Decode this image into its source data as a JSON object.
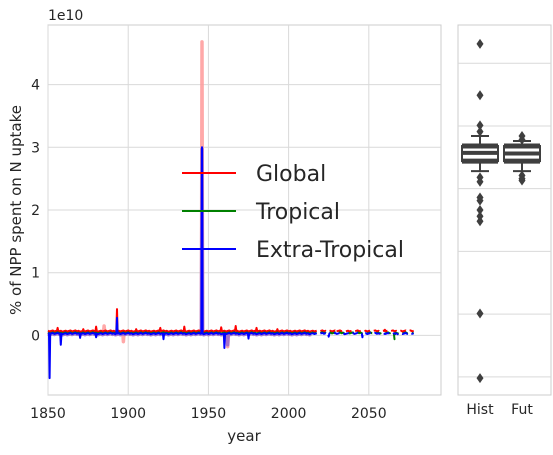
{
  "chart_data": [
    {
      "type": "line",
      "offset_label": "1e10",
      "xlabel": "year",
      "ylabel": "% of NPP spent on N uptake",
      "xlim": [
        1850,
        2095
      ],
      "ylim": [
        -0.95,
        4.95
      ],
      "x_ticks": [
        1850,
        1900,
        1950,
        2000,
        2050
      ],
      "y_ticks": [
        0,
        1,
        2,
        3,
        4
      ],
      "grid": true,
      "legend_position": "center",
      "legend": [
        {
          "label": "Global",
          "color": "#ff0000"
        },
        {
          "label": "Tropical",
          "color": "#008000"
        },
        {
          "label": "Extra-Tropical",
          "color": "#0000ff"
        }
      ],
      "series": [
        {
          "name": "Global",
          "color": "#ff0000",
          "style": "solid",
          "x_start": 1850,
          "x_end": 2014,
          "base": 0.07,
          "spikes": [
            [
              1856,
              0.12
            ],
            [
              1872,
              0.1
            ],
            [
              1880,
              0.14
            ],
            [
              1893,
              0.42
            ],
            [
              1905,
              0.1
            ],
            [
              1920,
              0.12
            ],
            [
              1935,
              0.14
            ],
            [
              1946,
              0.22
            ],
            [
              1958,
              0.13
            ],
            [
              1967,
              0.15
            ],
            [
              1980,
              0.12
            ],
            [
              1993,
              0.1
            ]
          ]
        },
        {
          "name": "Global (future)",
          "color": "#ff0000",
          "style": "dashed",
          "x_start": 2014,
          "x_end": 2078,
          "base": 0.07,
          "spikes": [
            [
              2030,
              0.1
            ],
            [
              2060,
              0.09
            ]
          ]
        },
        {
          "name": "Tropical",
          "color": "#008000",
          "style": "solid",
          "x_start": 1850,
          "x_end": 2014,
          "base": 0.04,
          "spikes": [
            [
              1893,
              0.2
            ],
            [
              1946,
              0.12
            ]
          ]
        },
        {
          "name": "Tropical (future)",
          "color": "#008000",
          "style": "dashed",
          "x_start": 2014,
          "x_end": 2078,
          "base": 0.04,
          "spikes": [
            [
              2066,
              -0.06
            ]
          ]
        },
        {
          "name": "Extra-Tropical",
          "color": "#0000ff",
          "style": "solid",
          "x_start": 1850,
          "x_end": 2014,
          "base": 0.03,
          "spikes": [
            [
              1851,
              -0.68
            ],
            [
              1858,
              -0.15
            ],
            [
              1870,
              -0.04
            ],
            [
              1880,
              -0.03
            ],
            [
              1893,
              0.28
            ],
            [
              1922,
              -0.06
            ],
            [
              1946,
              3.0
            ],
            [
              1960,
              -0.2
            ],
            [
              1975,
              -0.05
            ]
          ]
        },
        {
          "name": "Extra-Tropical (future)",
          "color": "#0000ff",
          "style": "dashed",
          "x_start": 2014,
          "x_end": 2078,
          "base": 0.03,
          "spikes": [
            [
              2025,
              -0.02
            ],
            [
              2046,
              -0.03
            ]
          ]
        },
        {
          "name": "Global (faint)",
          "color": "#ff9999",
          "style": "solid",
          "x_start": 1850,
          "x_end": 2014,
          "base": 0.05,
          "spikes": [
            [
              1885,
              0.15
            ],
            [
              1897,
              -0.1
            ],
            [
              1946,
              4.68
            ],
            [
              1962,
              -0.18
            ]
          ]
        },
        {
          "name": "Extra-Tropical (faint)",
          "color": "#9966cc",
          "style": "solid",
          "x_start": 1850,
          "x_end": 2014,
          "base": 0.02,
          "spikes": [
            [
              1946,
              2.97
            ],
            [
              1962,
              -0.15
            ]
          ]
        }
      ]
    },
    {
      "type": "box",
      "categories": [
        "Hist",
        "Fut"
      ],
      "ylim": [
        -0.95,
        4.95
      ],
      "boxes": [
        {
          "category": "Hist",
          "q1": 2.78,
          "median": 2.91,
          "q3": 3.02,
          "whisker_low": 2.62,
          "whisker_high": 3.18,
          "outliers": [
            4.65,
            3.83,
            3.35,
            3.25,
            2.52,
            2.45,
            2.2,
            2.15,
            2.0,
            1.9,
            1.82,
            0.35,
            -0.68
          ]
        },
        {
          "category": "Fut",
          "q1": 2.78,
          "median": 2.9,
          "q3": 3.02,
          "whisker_low": 2.62,
          "whisker_high": 3.1,
          "outliers": [
            3.18,
            3.12,
            2.55,
            2.5,
            2.47
          ]
        }
      ]
    }
  ]
}
